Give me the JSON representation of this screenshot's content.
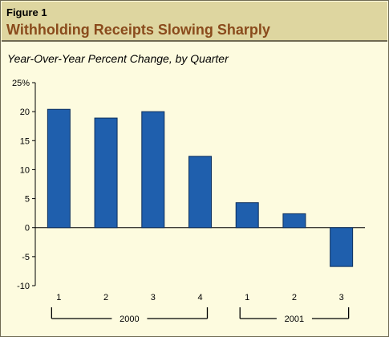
{
  "header": {
    "figure_label": "Figure 1",
    "title": "Withholding Receipts Slowing Sharply"
  },
  "subtitle": "Year-Over-Year Percent Change, by Quarter",
  "colors": {
    "bar": "#1f5fad",
    "bar_stroke": "#0c2f5e",
    "header_bg": "#ded6a0",
    "title": "#8a4b1c",
    "background": "#fdfbdf"
  },
  "chart_data": {
    "type": "bar",
    "title": "Withholding Receipts Slowing Sharply",
    "ylabel": "Year-Over-Year Percent Change, by Quarter",
    "categories": [
      "1",
      "2",
      "3",
      "4",
      "1",
      "2",
      "3"
    ],
    "groups": [
      {
        "label": "2000",
        "categories": [
          "1",
          "2",
          "3",
          "4"
        ]
      },
      {
        "label": "2001",
        "categories": [
          "1",
          "2",
          "3"
        ]
      }
    ],
    "values": [
      20.4,
      18.9,
      20.0,
      12.3,
      4.3,
      2.4,
      -6.7
    ],
    "ylim": [
      -10,
      25
    ],
    "yticks": [
      {
        "value": 25,
        "label": "25%"
      },
      {
        "value": 20,
        "label": "20"
      },
      {
        "value": 15,
        "label": "15"
      },
      {
        "value": 10,
        "label": "10"
      },
      {
        "value": 5,
        "label": "5"
      },
      {
        "value": 0,
        "label": "0"
      },
      {
        "value": -5,
        "label": "-5"
      },
      {
        "value": -10,
        "label": "-10"
      }
    ],
    "grid": false,
    "legend": "none"
  }
}
